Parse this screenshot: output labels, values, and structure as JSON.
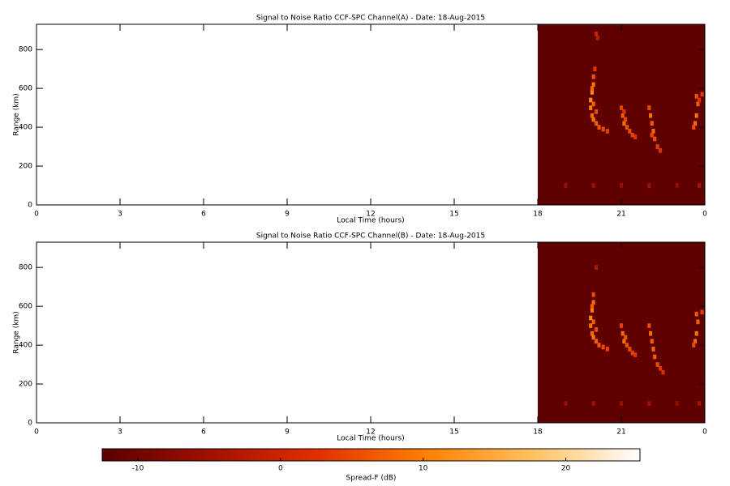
{
  "chart_data": [
    {
      "type": "heatmap",
      "title": "Signal to Noise Ratio CCF-SPC Channel(A) - Date: 18-Aug-2015",
      "xlabel": "Local Time (hours)",
      "ylabel": "Range (km)",
      "xlim": [
        0,
        24
      ],
      "xticks": [
        0,
        3,
        6,
        9,
        12,
        15,
        18,
        21,
        {
          "value": 24,
          "label": "0"
        }
      ],
      "ylim": [
        0,
        930
      ],
      "yticks": [
        0,
        200,
        400,
        600,
        800
      ],
      "background": {
        "xlim": [
          18,
          24
        ],
        "value": -12
      },
      "cells": {
        "x": [
          20.0,
          20.0,
          19.95,
          19.9,
          19.9,
          19.95,
          20.0,
          20.1,
          20.2,
          20.35,
          20.5,
          20.1,
          20.0,
          19.95,
          20.05,
          21.0,
          21.05,
          21.1,
          21.2,
          21.3,
          21.4,
          21.15,
          21.5,
          21.1,
          22.0,
          22.05,
          22.1,
          22.15,
          22.2,
          22.3,
          22.4,
          22.1,
          23.7,
          23.75,
          23.7,
          23.65,
          23.6,
          23.9,
          23.8,
          20.1,
          20.15,
          19.0,
          20.0,
          21.0,
          22.0,
          23.0,
          23.8
        ],
        "y": [
          660,
          620,
          580,
          540,
          500,
          460,
          440,
          420,
          400,
          390,
          380,
          480,
          520,
          600,
          700,
          500,
          460,
          420,
          400,
          380,
          360,
          440,
          350,
          480,
          500,
          460,
          420,
          380,
          340,
          300,
          280,
          360,
          560,
          520,
          460,
          420,
          400,
          570,
          540,
          880,
          860,
          100,
          100,
          100,
          100,
          100,
          100
        ],
        "values": [
          6,
          9,
          11,
          12,
          10,
          8,
          9,
          7,
          6,
          5,
          4,
          5,
          7,
          8,
          3,
          4,
          7,
          9,
          6,
          5,
          4,
          5,
          3,
          3,
          5,
          9,
          7,
          8,
          6,
          4,
          2,
          5,
          6,
          7,
          9,
          8,
          5,
          4,
          3,
          0,
          -2,
          -6,
          -5,
          -6,
          -5,
          -6,
          -4
        ]
      }
    },
    {
      "type": "heatmap",
      "title": "Signal to Noise Ratio CCF-SPC Channel(B) - Date: 18-Aug-2015",
      "xlabel": "Local Time (hours)",
      "ylabel": "Range (km)",
      "xlim": [
        0,
        24
      ],
      "xticks": [
        0,
        3,
        6,
        9,
        12,
        15,
        18,
        21,
        {
          "value": 24,
          "label": "0"
        }
      ],
      "ylim": [
        0,
        930
      ],
      "yticks": [
        0,
        200,
        400,
        600,
        800
      ],
      "background": {
        "xlim": [
          18,
          24
        ],
        "value": -12
      },
      "cells": {
        "x": [
          20.0,
          20.0,
          19.95,
          19.9,
          19.9,
          19.95,
          20.0,
          20.1,
          20.2,
          20.35,
          20.5,
          20.1,
          20.0,
          19.95,
          21.0,
          21.05,
          21.1,
          21.2,
          21.3,
          21.4,
          21.15,
          21.5,
          22.0,
          22.05,
          22.1,
          22.15,
          22.2,
          22.3,
          22.4,
          22.5,
          23.7,
          23.75,
          23.7,
          23.65,
          23.6,
          23.9,
          20.1,
          19.0,
          20.0,
          21.0,
          22.0,
          23.0,
          23.8
        ],
        "y": [
          660,
          620,
          580,
          540,
          500,
          460,
          440,
          420,
          400,
          390,
          380,
          480,
          520,
          600,
          500,
          460,
          420,
          400,
          380,
          360,
          440,
          350,
          500,
          460,
          420,
          380,
          340,
          300,
          280,
          260,
          560,
          520,
          460,
          420,
          400,
          570,
          800,
          100,
          100,
          100,
          100,
          100,
          100
        ],
        "values": [
          5,
          8,
          10,
          11,
          9,
          8,
          9,
          7,
          6,
          5,
          4,
          5,
          7,
          7,
          4,
          8,
          9,
          6,
          5,
          4,
          6,
          3,
          5,
          8,
          7,
          8,
          7,
          5,
          3,
          2,
          6,
          7,
          9,
          8,
          5,
          4,
          -3,
          -6,
          -5,
          -6,
          -5,
          -6,
          -4
        ]
      }
    },
    {
      "type": "colorbar",
      "label": "Spread-F (dB)",
      "clim": [
        -12.5,
        25.2
      ],
      "cticks": [
        -10,
        0,
        10,
        20
      ],
      "colors": [
        "#5a0000",
        "#a01000",
        "#e03000",
        "#ff7f00",
        "#ffc060",
        "#ffffff"
      ]
    }
  ]
}
